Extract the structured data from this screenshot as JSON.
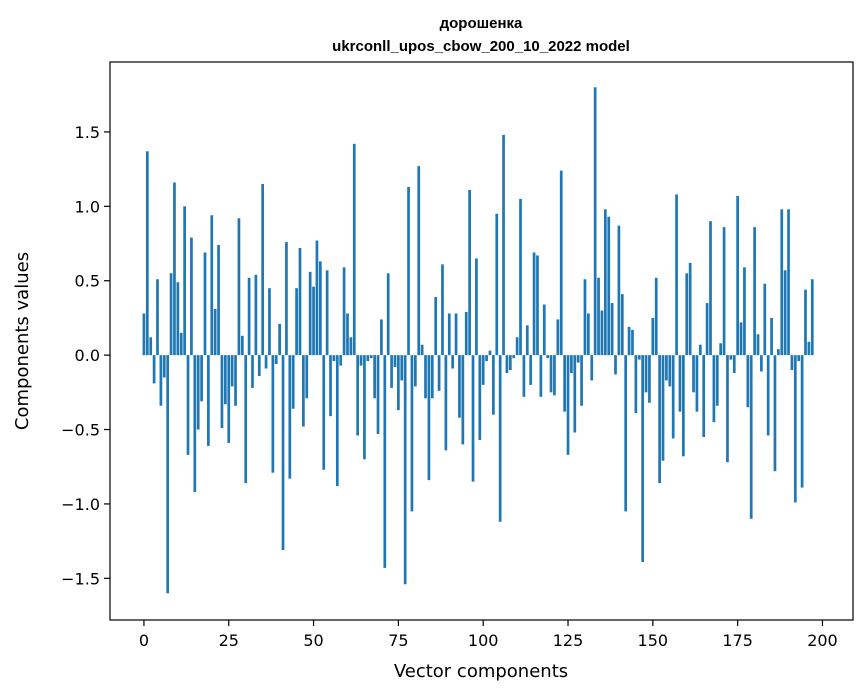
{
  "chart_data": {
    "type": "bar",
    "title": "дорошенка",
    "subtitle": "ukrconll_upos_cbow_200_10_2022 model",
    "xlabel": "Vector components",
    "ylabel": "Components values",
    "xlim": [
      -10,
      209
    ],
    "ylim": [
      -1.78,
      1.97
    ],
    "xticks": [
      0,
      25,
      50,
      75,
      100,
      125,
      150,
      175,
      200
    ],
    "yticks": [
      -1.5,
      -1.0,
      -0.5,
      0.0,
      0.5,
      1.0,
      1.5
    ],
    "ytick_labels": [
      "−1.5",
      "−1.0",
      "−0.5",
      "0.0",
      "0.5",
      "1.0",
      "1.5"
    ],
    "bar_color": "#1f77b4",
    "grid": false,
    "values": [
      0.28,
      1.37,
      0.12,
      -0.19,
      0.51,
      -0.34,
      -0.15,
      -1.6,
      0.55,
      1.16,
      0.49,
      0.15,
      1.0,
      -0.67,
      0.79,
      -0.92,
      -0.5,
      -0.31,
      0.69,
      -0.61,
      0.94,
      0.31,
      0.74,
      -0.49,
      -0.33,
      -0.59,
      -0.21,
      -0.34,
      0.92,
      0.13,
      -0.86,
      0.52,
      -0.22,
      0.54,
      -0.14,
      1.15,
      -0.09,
      0.45,
      -0.79,
      -0.06,
      0.21,
      -1.31,
      0.76,
      -0.83,
      -0.36,
      0.45,
      0.72,
      -0.48,
      -0.29,
      0.56,
      0.46,
      0.77,
      0.63,
      -0.77,
      0.57,
      -0.41,
      -0.04,
      -0.88,
      -0.07,
      0.59,
      0.28,
      0.12,
      1.42,
      -0.54,
      -0.07,
      -0.7,
      -0.04,
      -0.02,
      -0.29,
      -0.53,
      0.24,
      -1.43,
      0.55,
      -0.22,
      -0.08,
      -0.37,
      -0.17,
      -1.54,
      1.13,
      -1.05,
      -0.21,
      1.27,
      0.07,
      -0.29,
      -0.84,
      -0.29,
      0.39,
      -0.24,
      0.61,
      -0.64,
      0.28,
      -0.09,
      0.28,
      -0.42,
      -0.6,
      0.29,
      1.11,
      -0.85,
      0.65,
      -0.57,
      -0.2,
      -0.04,
      0.03,
      -0.4,
      0.95,
      -1.12,
      1.48,
      -0.12,
      -0.1,
      -0.02,
      0.12,
      1.05,
      -0.28,
      0.2,
      -0.2,
      0.69,
      0.67,
      -0.28,
      0.34,
      -0.02,
      -0.25,
      -0.27,
      0.24,
      1.24,
      -0.38,
      -0.67,
      -0.12,
      -0.52,
      -0.05,
      -0.34,
      0.51,
      0.28,
      -0.17,
      1.8,
      0.52,
      0.3,
      0.98,
      0.93,
      0.35,
      -0.13,
      0.87,
      0.41,
      -1.05,
      0.19,
      0.17,
      -0.39,
      -0.03,
      -1.39,
      -0.25,
      -0.32,
      0.25,
      0.52,
      -0.86,
      -0.71,
      -0.17,
      -0.21,
      -0.56,
      1.08,
      -0.38,
      -0.68,
      0.55,
      0.62,
      -0.25,
      -0.38,
      0.07,
      -0.55,
      0.35,
      0.9,
      -0.45,
      -0.34,
      0.08,
      0.86,
      -0.72,
      -0.03,
      -0.12,
      1.07,
      0.22,
      0.59,
      -0.35,
      -1.1,
      0.86,
      0.14,
      -0.11,
      0.48,
      -0.54,
      0.25,
      -0.78,
      0.04,
      0.98,
      0.57,
      0.98,
      -0.1,
      -0.99,
      -0.04,
      -0.89,
      0.44,
      0.09,
      0.51
    ]
  }
}
